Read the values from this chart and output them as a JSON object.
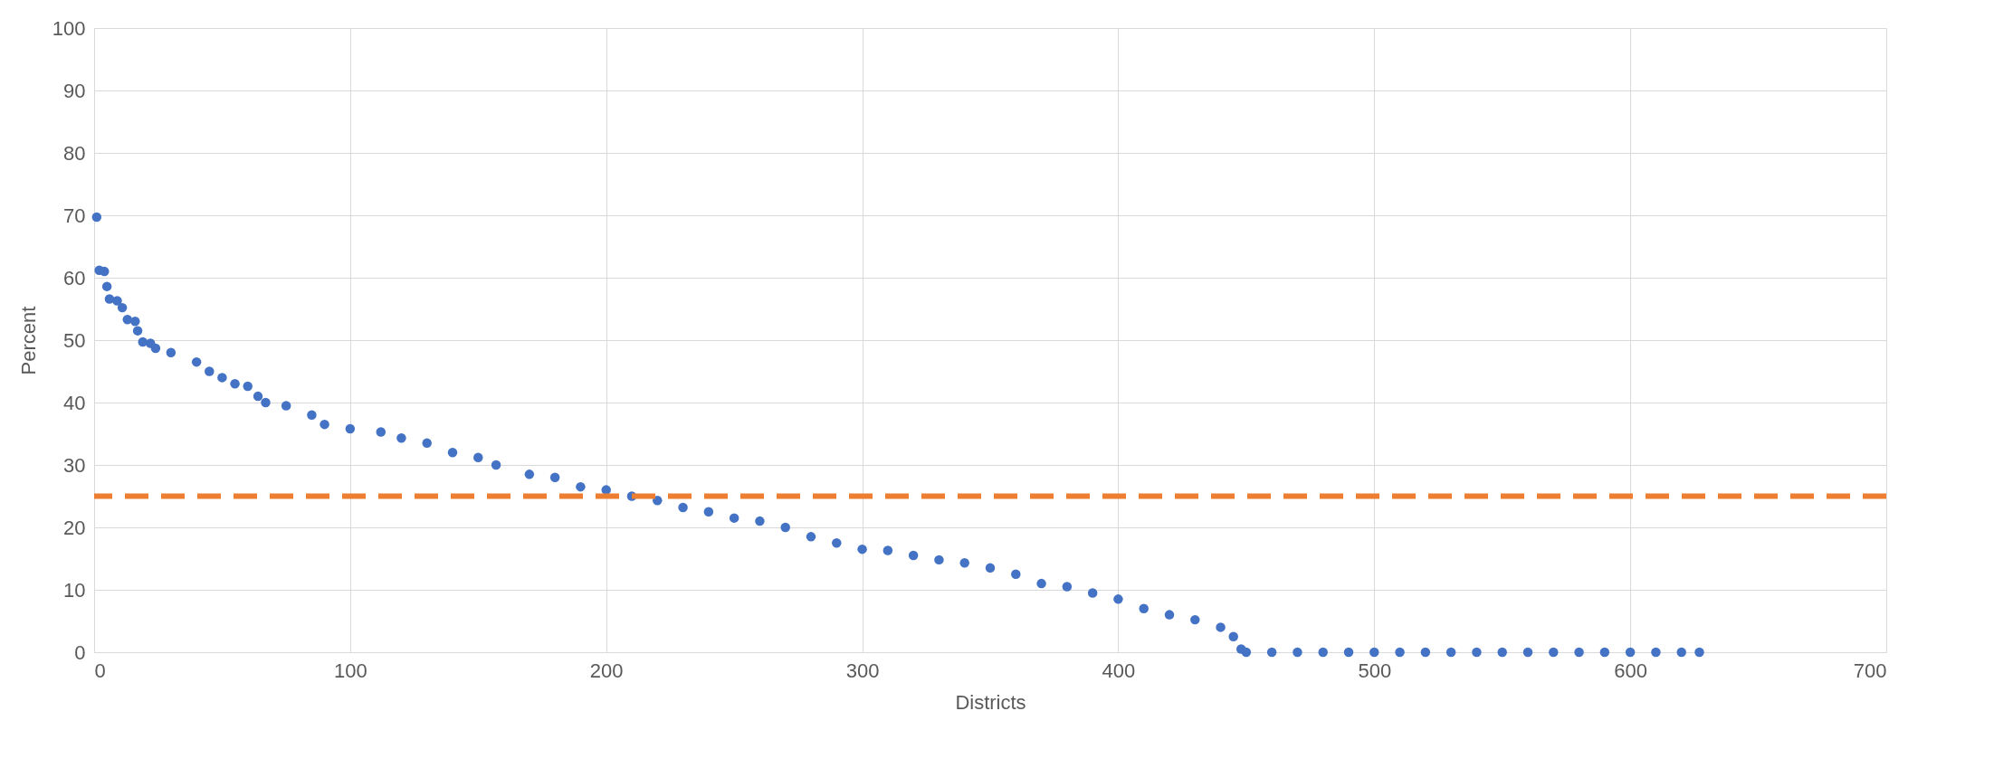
{
  "chart_data": {
    "type": "scatter",
    "xlabel": "Districts",
    "ylabel": "Percent",
    "x": [
      1,
      2,
      4,
      5,
      6,
      9,
      11,
      13,
      16,
      17,
      19,
      22,
      24,
      30,
      40,
      45,
      50,
      55,
      60,
      64,
      67,
      75,
      85,
      90,
      100,
      112,
      120,
      130,
      140,
      150,
      157,
      170,
      180,
      190,
      200,
      210,
      220,
      230,
      240,
      250,
      260,
      270,
      280,
      290,
      300,
      310,
      320,
      330,
      340,
      350,
      360,
      370,
      380,
      390,
      400,
      410,
      420,
      430,
      440,
      445,
      448,
      450,
      460,
      470,
      480,
      490,
      500,
      510,
      520,
      530,
      540,
      550,
      560,
      570,
      580,
      590,
      600,
      610,
      620,
      627
    ],
    "series": [
      {
        "color": "#4472c4",
        "values": [
          69.7,
          61.2,
          61,
          58.6,
          56.6,
          56.3,
          55.2,
          53.3,
          53,
          51.5,
          49.7,
          49.5,
          48.7,
          48,
          46.5,
          45,
          44,
          43,
          42.6,
          41,
          40,
          39.5,
          38,
          36.5,
          35.8,
          35.3,
          34.3,
          33.5,
          32,
          31.2,
          30,
          28.5,
          28,
          26.5,
          26,
          25,
          24.3,
          23.2,
          22.5,
          21.5,
          21,
          20,
          18.5,
          17.5,
          16.5,
          16.3,
          15.5,
          14.8,
          14.3,
          13.5,
          12.5,
          11,
          10.5,
          9.5,
          8.5,
          7,
          6,
          5.2,
          4,
          2.5,
          0.5,
          0,
          0,
          0,
          0,
          0,
          0,
          0,
          0,
          0,
          0,
          0,
          0,
          0,
          0,
          0,
          0,
          0,
          0,
          0
        ]
      }
    ],
    "xlim": [
      0,
      700
    ],
    "xticks": [
      0,
      100,
      200,
      300,
      400,
      500,
      600,
      700
    ],
    "ylim": [
      0,
      100
    ],
    "yticks": [
      0,
      10,
      20,
      30,
      40,
      50,
      60,
      70,
      80,
      90,
      100
    ],
    "ref_lines": [
      {
        "axis": "y",
        "value": 25,
        "color": "#ed7d31",
        "line_style": "dashed"
      }
    ],
    "grid": true,
    "marker": "circle"
  }
}
